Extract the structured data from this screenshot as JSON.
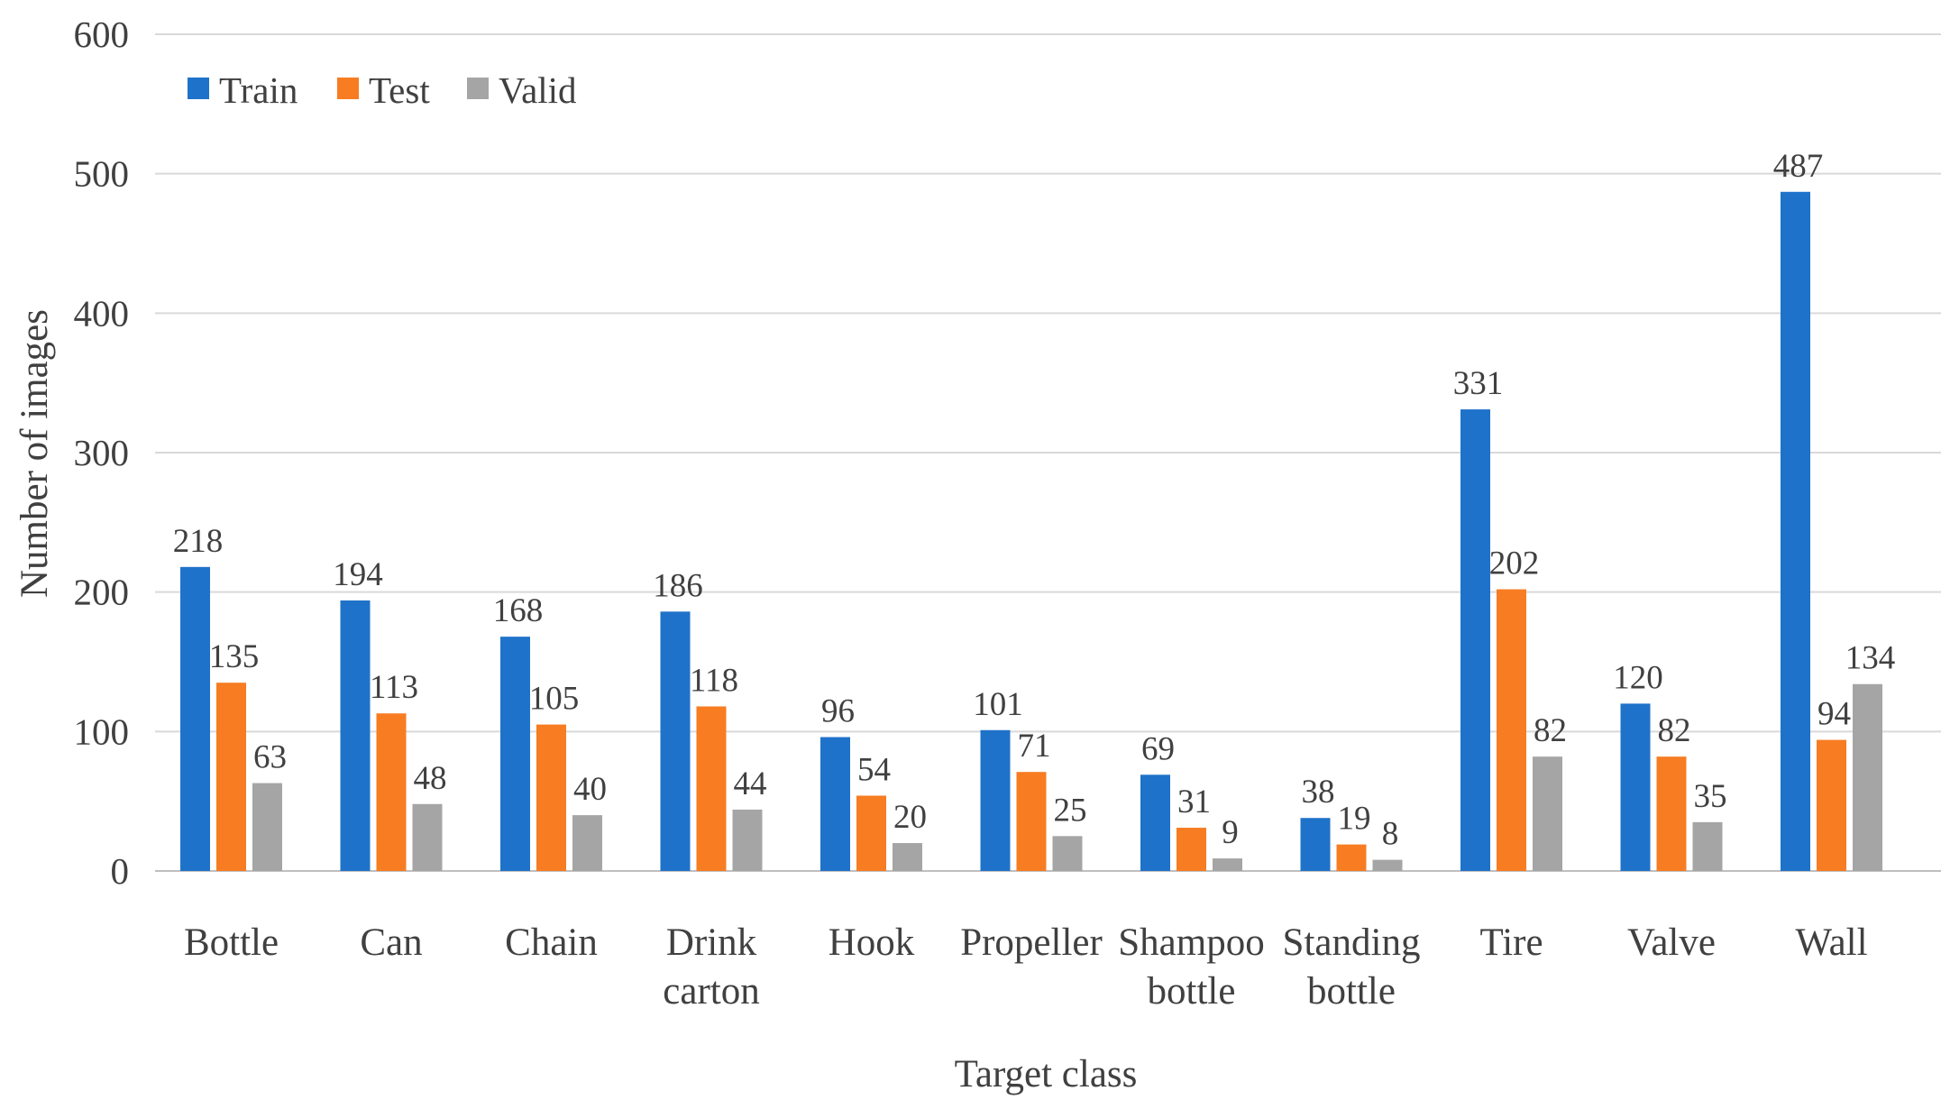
{
  "chart_data": {
    "type": "bar",
    "title": "",
    "xlabel": "Target class",
    "ylabel": "Number of images",
    "ylim": [
      0,
      600
    ],
    "yticks": [
      0,
      100,
      200,
      300,
      400,
      500,
      600
    ],
    "grid": true,
    "legend_position": "top-left",
    "categories": [
      [
        "Bottle"
      ],
      [
        "Can"
      ],
      [
        "Chain"
      ],
      [
        "Drink",
        "carton"
      ],
      [
        "Hook"
      ],
      [
        "Propeller"
      ],
      [
        "Shampoo",
        "bottle"
      ],
      [
        "Standing",
        "bottle"
      ],
      [
        "Tire"
      ],
      [
        "Valve"
      ],
      [
        "Wall"
      ]
    ],
    "series": [
      {
        "name": "Train",
        "color": "#1f72c9",
        "values": [
          218,
          194,
          168,
          186,
          96,
          101,
          69,
          38,
          331,
          120,
          487
        ]
      },
      {
        "name": "Test",
        "color": "#f77c22",
        "values": [
          135,
          113,
          105,
          118,
          54,
          71,
          31,
          19,
          202,
          82,
          94
        ]
      },
      {
        "name": "Valid",
        "color": "#a5a5a5",
        "values": [
          63,
          48,
          40,
          44,
          20,
          25,
          9,
          8,
          82,
          35,
          134
        ]
      }
    ]
  }
}
